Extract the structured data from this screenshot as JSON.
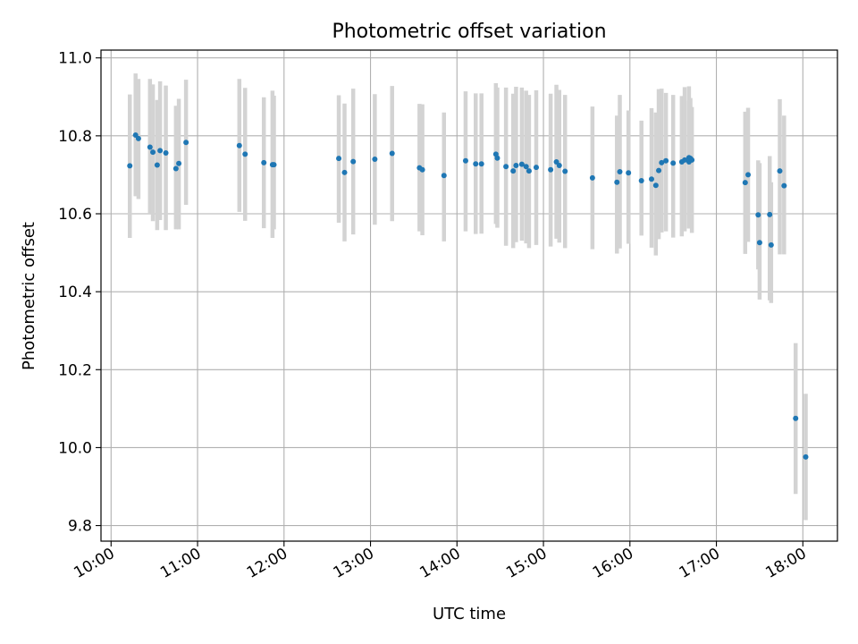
{
  "chart_data": {
    "type": "scatter",
    "title": "Photometric offset variation",
    "xlabel": "UTC time",
    "ylabel": "Photometric offset",
    "xlim": [
      "09:53",
      "18:24"
    ],
    "ylim": [
      9.76,
      11.02
    ],
    "x_ticks": [
      "10:00",
      "11:00",
      "12:00",
      "13:00",
      "14:00",
      "15:00",
      "16:00",
      "17:00",
      "18:00"
    ],
    "y_ticks": [
      "9.8",
      "10.0",
      "10.2",
      "10.4",
      "10.6",
      "10.8",
      "11.0"
    ],
    "grid": true,
    "marker_color": "#1f77b4",
    "errorbar_color": "#d3d3d3",
    "series": [
      {
        "x": [
          "10:13",
          "10:17",
          "10:19",
          "10:27",
          "10:29",
          "10:32",
          "10:34",
          "10:38",
          "10:45",
          "10:47",
          "10:52",
          "11:29",
          "11:33",
          "11:46",
          "11:52",
          "11:53",
          "12:38",
          "12:42",
          "12:48",
          "13:03",
          "13:15",
          "13:34",
          "13:36",
          "13:51",
          "14:06",
          "14:13",
          "14:17",
          "14:27",
          "14:28",
          "14:34",
          "14:39",
          "14:41",
          "14:45",
          "14:48",
          "14:50",
          "14:55",
          "15:05",
          "15:09",
          "15:11",
          "15:15",
          "15:34",
          "15:51",
          "15:53",
          "15:59",
          "16:08",
          "16:15",
          "16:18",
          "16:20",
          "16:22",
          "16:25",
          "16:30",
          "16:36",
          "16:38",
          "16:41",
          "16:41",
          "16:42",
          "16:43",
          "17:20",
          "17:22",
          "17:29",
          "17:30",
          "17:37",
          "17:38",
          "17:44",
          "17:47",
          "17:55",
          "18:02"
        ],
        "y": [
          10.723,
          10.802,
          10.793,
          10.771,
          10.758,
          10.725,
          10.762,
          10.756,
          10.716,
          10.729,
          10.783,
          10.775,
          10.753,
          10.731,
          10.726,
          10.726,
          10.742,
          10.706,
          10.734,
          10.74,
          10.755,
          10.718,
          10.713,
          10.698,
          10.736,
          10.728,
          10.728,
          10.753,
          10.743,
          10.721,
          10.71,
          10.724,
          10.727,
          10.721,
          10.71,
          10.719,
          10.713,
          10.733,
          10.724,
          10.709,
          10.692,
          10.681,
          10.708,
          10.705,
          10.685,
          10.689,
          10.673,
          10.711,
          10.731,
          10.736,
          10.73,
          10.733,
          10.738,
          10.744,
          10.733,
          10.742,
          10.738,
          10.68,
          10.7,
          10.597,
          10.526,
          10.598,
          10.52,
          10.71,
          10.672,
          10.075,
          9.976
        ],
        "err_low": [
          0.185,
          0.157,
          0.155,
          0.173,
          0.177,
          0.167,
          0.178,
          0.198,
          0.156,
          0.169,
          0.16,
          0.17,
          0.171,
          0.168,
          0.188,
          0.166,
          0.165,
          0.177,
          0.187,
          0.168,
          0.174,
          0.163,
          0.168,
          0.169,
          0.181,
          0.18,
          0.179,
          0.179,
          0.179,
          0.203,
          0.198,
          0.197,
          0.196,
          0.197,
          0.198,
          0.199,
          0.197,
          0.197,
          0.198,
          0.197,
          0.183,
          0.183,
          0.197,
          0.182,
          0.141,
          0.176,
          0.18,
          0.176,
          0.179,
          0.181,
          0.191,
          0.191,
          0.183,
          0.182,
          0.171,
          0.176,
          0.187,
          0.183,
          0.172,
          0.14,
          0.146,
          0.22,
          0.149,
          0.214,
          0.176,
          0.194,
          0.162
        ],
        "err_high": [
          0.183,
          0.158,
          0.153,
          0.175,
          0.174,
          0.167,
          0.178,
          0.173,
          0.161,
          0.166,
          0.161,
          0.171,
          0.17,
          0.168,
          0.19,
          0.177,
          0.162,
          0.177,
          0.187,
          0.167,
          0.173,
          0.164,
          0.168,
          0.162,
          0.178,
          0.181,
          0.181,
          0.182,
          0.181,
          0.203,
          0.198,
          0.202,
          0.197,
          0.195,
          0.195,
          0.198,
          0.195,
          0.198,
          0.194,
          0.196,
          0.183,
          0.171,
          0.197,
          0.16,
          0.154,
          0.182,
          0.187,
          0.209,
          0.19,
          0.174,
          0.175,
          0.169,
          0.187,
          0.183,
          0.157,
          0.155,
          0.136,
          0.182,
          0.172,
          0.14,
          0.204,
          0.15,
          0.161,
          0.184,
          0.18,
          0.193,
          0.162
        ]
      }
    ]
  }
}
